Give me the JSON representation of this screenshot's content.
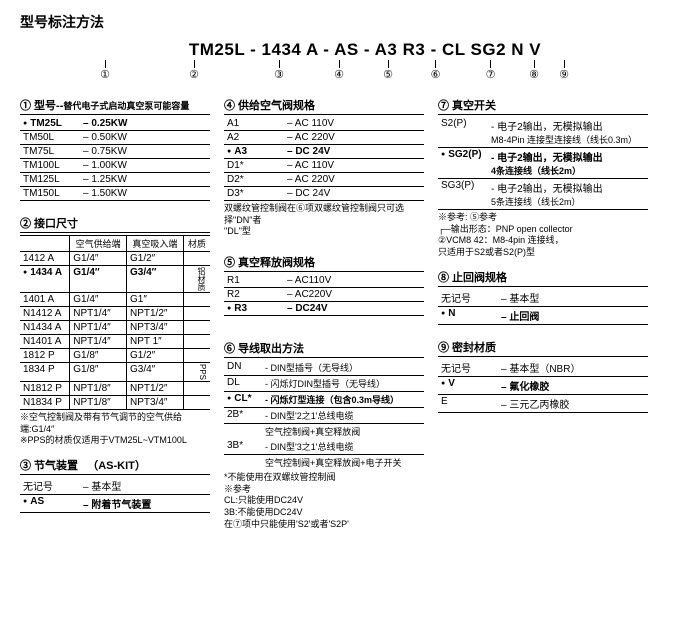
{
  "pageTitle": "型号标注方法",
  "modelString": "TM25L - 1434 A - AS - A3 R3 - CL SG2 N V",
  "circles": [
    "①",
    "②",
    "③",
    "④",
    "⑤",
    "⑥",
    "⑦",
    "⑧",
    "⑨"
  ],
  "sec1": {
    "title": "① 型号--",
    "sub": "替代电子式启动真空泵可能容量",
    "rows": [
      [
        "TM25L",
        "0.25KW",
        true
      ],
      [
        "TM50L",
        "0.50KW",
        false
      ],
      [
        "TM75L",
        "0.75KW",
        false
      ],
      [
        "TM100L",
        "1.00KW",
        false
      ],
      [
        "TM125L",
        "1.25KW",
        false
      ],
      [
        "TM150L",
        "1.50KW",
        false
      ]
    ]
  },
  "sec2": {
    "title": "② 接口尺寸",
    "headers": [
      "",
      "空气供给端",
      "真空吸入端",
      "材质"
    ],
    "rows": [
      [
        "1412 A",
        "G1/4″",
        "G1/2″",
        "",
        false
      ],
      [
        "1434 A",
        "G1/4″",
        "G3/4″",
        "铝材质",
        true
      ],
      [
        "1401 A",
        "G1/4″",
        "G1″",
        "",
        false
      ],
      [
        "N1412 A",
        "NPT1/4″",
        "NPT1/2″",
        "",
        false
      ],
      [
        "N1434 A",
        "NPT1/4″",
        "NPT3/4″",
        "",
        false
      ],
      [
        "N1401 A",
        "NPT1/4″",
        "NPT 1″",
        "",
        false
      ],
      [
        "1812 P",
        "G1/8″",
        "G1/2″",
        "",
        false
      ],
      [
        "1834 P",
        "G1/8″",
        "G3/4″",
        "PPS",
        false
      ],
      [
        "N1812 P",
        "NPT1/8″",
        "NPT1/2″",
        "",
        false
      ],
      [
        "N1834 P",
        "NPT1/8″",
        "NPT3/4″",
        "",
        false
      ]
    ],
    "notes": [
      "※空气控制阀及带有节气调节的空气供给端:G1/4″",
      "※PPS的材质仅适用于VTM25L~VTM100L"
    ]
  },
  "sec3": {
    "title": "③ 节气装置",
    "suffix": "（AS-KIT）",
    "rows": [
      [
        "无记号",
        "基本型",
        false
      ],
      [
        "AS",
        "附着节气装置",
        true
      ]
    ]
  },
  "sec4": {
    "title": "④ 供给空气阀规格",
    "rows": [
      [
        "A1",
        "AC 110V",
        false
      ],
      [
        "A2",
        "AC 220V",
        false
      ],
      [
        "A3",
        "DC 24V",
        true
      ],
      [
        "D1*",
        "AC 110V",
        false
      ],
      [
        "D2*",
        "AC 220V",
        false
      ],
      [
        "D3*",
        "DC 24V",
        false
      ]
    ],
    "notes": [
      "双螺纹管控制阀在⑥项双螺纹管控制阀只可选择\"DN\"者",
      "\"DL\"型"
    ]
  },
  "sec5": {
    "title": "⑤ 真空释放阀规格",
    "rows": [
      [
        "R1",
        "AC110V",
        false
      ],
      [
        "R2",
        "AC220V",
        false
      ],
      [
        "R3",
        "DC24V",
        true
      ]
    ]
  },
  "sec6": {
    "title": "⑥ 导线取出方法",
    "rows": [
      [
        "DN",
        "DIN型插号（无导线）",
        false
      ],
      [
        "DL",
        "闪烁灯DIN型插号（无导线）",
        false
      ],
      [
        "CL*",
        "闪烁灯型连接（包含0.3m导线）",
        true
      ],
      [
        "2B*",
        "DIN型'2之1'总线电缆",
        false
      ],
      [
        "",
        "空气控制阀+真空释放阀",
        false
      ],
      [
        "3B*",
        "DIN型'3之1'总线电缆",
        false
      ],
      [
        "",
        "空气控制阀+真空释放阀+电子开关",
        false
      ]
    ],
    "notes": [
      "*不能使用在双螺纹管控制阀",
      "※参考",
      "CL:只能使用DC24V",
      "3B:不能使用DC24V",
      "   在⑦项中只能使用'S2'或者'S2P'"
    ]
  },
  "sec7": {
    "title": "⑦ 真空开关",
    "rows": [
      [
        "S2(P)",
        "电子2输出，无模拟输出",
        false,
        "M8-4Pin 连接型连接线（线长0.3m）"
      ],
      [
        "SG2(P)",
        "电子2输出，无模拟输出",
        true,
        "4条连接线（线长2m）"
      ],
      [
        "SG3(P)",
        "电子2输出，无模拟输出",
        false,
        "5条连接线（线长2m）"
      ]
    ],
    "notes": [
      "※参考: ⑤参考",
      "┌─输出形态：PNP open collector",
      "②VCM8 42：M8-4pin 连接线，",
      "   只适用于S2或者S2(P)型"
    ]
  },
  "sec8": {
    "title": "⑧ 止回阀规格",
    "rows": [
      [
        "无记号",
        "基本型",
        false
      ],
      [
        "N",
        "止回阀",
        true
      ]
    ]
  },
  "sec9": {
    "title": "⑨ 密封材质",
    "rows": [
      [
        "无记号",
        "基本型（NBR）",
        false
      ],
      [
        "V",
        "氟化橡胶",
        true
      ],
      [
        "E",
        "三元乙丙橡胶",
        false
      ]
    ]
  }
}
